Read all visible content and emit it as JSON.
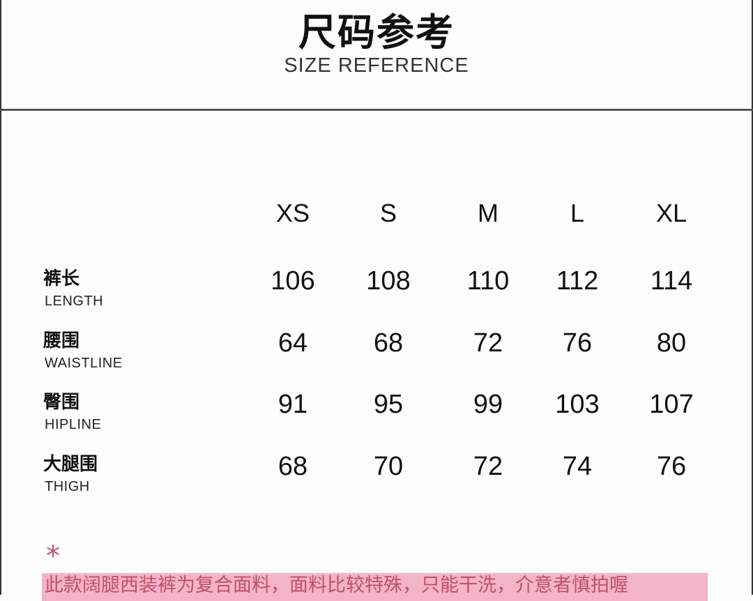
{
  "header": {
    "title": "尺码参考",
    "subtitle": "SIZE REFERENCE"
  },
  "table": {
    "sizes": [
      "XS",
      "S",
      "M",
      "L",
      "XL"
    ],
    "rows": [
      {
        "label_cn": "裤长",
        "label_en": "LENGTH",
        "values": [
          "106",
          "108",
          "110",
          "112",
          "114"
        ]
      },
      {
        "label_cn": "腰围",
        "label_en": "WAISTLINE",
        "values": [
          "64",
          "68",
          "72",
          "76",
          "80"
        ]
      },
      {
        "label_cn": "臀围",
        "label_en": "HIPLINE",
        "values": [
          "91",
          "95",
          "99",
          "103",
          "107"
        ]
      },
      {
        "label_cn": "大腿围",
        "label_en": "THIGH",
        "values": [
          "68",
          "70",
          "72",
          "74",
          "76"
        ]
      }
    ]
  },
  "note": {
    "symbol": "*",
    "text": "此款阔腿西装裤为复合面料，面料比较特殊，只能干洗，介意者慎拍喔"
  },
  "colors": {
    "accent_pink": "#c4527a",
    "note_background": "#f3b3c9"
  }
}
